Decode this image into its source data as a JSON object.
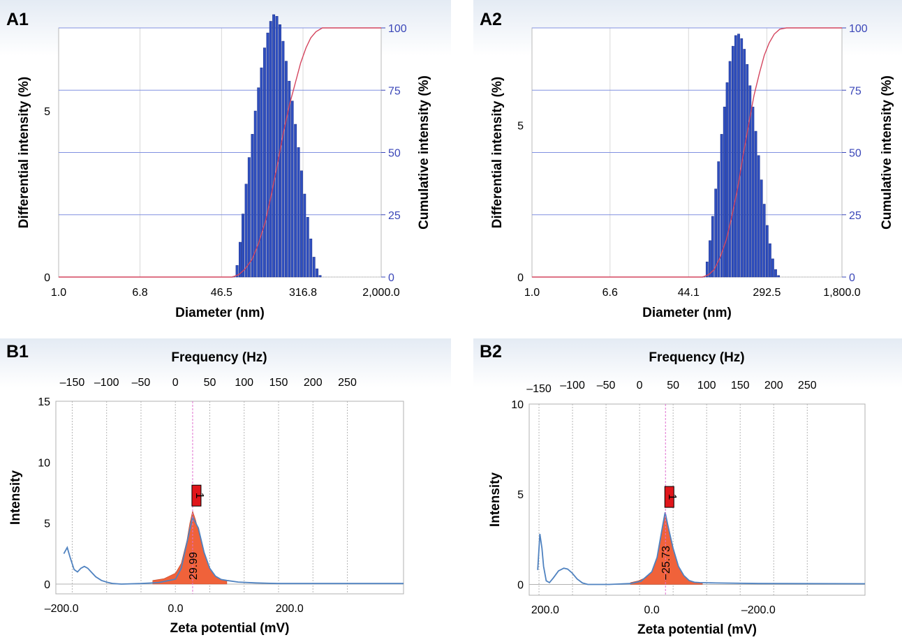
{
  "colors": {
    "bar": "#2f4fbf",
    "bar_edge": "#1a2e88",
    "cumulative_line": "#d4455e",
    "grid_blue": "#8090e0",
    "right_axis": "#3b47b8",
    "peak_fill": "#f0623a",
    "zeta_line": "#4f82c0",
    "marker_red": "#e0161b",
    "marker_line": "#e070d0",
    "panel_top_bg": "#e4ebf4"
  },
  "chart_data": [
    {
      "id": "A1",
      "panel_label": "A1",
      "type": "bar",
      "xlabel": "Diameter (nm)",
      "ylabel": "Differential intensity (%)",
      "y2label": "Cumulative intensity (%)",
      "x_scale": "log",
      "x_ticks": [
        "1.0",
        "6.8",
        "46.5",
        "316.8",
        "2,000.0"
      ],
      "x_tick_values": [
        1.0,
        6.8,
        46.5,
        316.8,
        2000.0
      ],
      "y_ticks": [
        "0",
        "5"
      ],
      "y_tick_values": [
        0,
        5
      ],
      "ylim": [
        0,
        7.5
      ],
      "y2_ticks": [
        "0",
        "25",
        "50",
        "75",
        "100"
      ],
      "y2_tick_values": [
        0,
        25,
        50,
        75,
        100
      ],
      "y2lim": [
        0,
        100
      ],
      "grid": true,
      "bars": {
        "x": [
          62,
          67,
          72,
          77,
          83,
          89,
          96,
          103,
          111,
          119,
          128,
          138,
          148,
          159,
          171,
          184,
          198,
          213,
          229,
          246,
          265,
          285,
          306,
          329,
          354,
          381,
          410,
          441,
          474
        ],
        "y": [
          0.02,
          0.35,
          1.05,
          1.9,
          2.8,
          3.6,
          4.3,
          5.0,
          5.7,
          6.3,
          6.9,
          7.35,
          7.7,
          7.9,
          7.85,
          7.6,
          7.1,
          6.5,
          5.9,
          5.3,
          4.6,
          3.9,
          3.2,
          2.5,
          1.8,
          1.15,
          0.6,
          0.25,
          0.05
        ]
      },
      "cumulative": {
        "x": [
          1,
          60,
          70,
          80,
          95,
          110,
          130,
          150,
          175,
          200,
          230,
          265,
          300,
          340,
          380,
          430,
          500,
          600,
          2000
        ],
        "y": [
          0,
          0,
          1,
          3,
          7,
          13,
          22,
          33,
          46,
          58,
          69,
          78,
          86,
          92,
          96,
          98.5,
          100,
          100,
          100
        ]
      }
    },
    {
      "id": "A2",
      "panel_label": "A2",
      "type": "bar",
      "xlabel": "Diameter (nm)",
      "ylabel": "Differential intensity (%)",
      "y2label": "Cumulative intensity (%)",
      "x_scale": "log",
      "x_ticks": [
        "1.0",
        "6.6",
        "44.1",
        "292.5",
        "1,800.0"
      ],
      "x_tick_values": [
        1.0,
        6.6,
        44.1,
        292.5,
        1800.0
      ],
      "y_ticks": [
        "0",
        "5"
      ],
      "y_tick_values": [
        0,
        5
      ],
      "ylim": [
        0,
        8.2
      ],
      "y2_ticks": [
        "0",
        "25",
        "50",
        "75",
        "100"
      ],
      "y2_tick_values": [
        0,
        25,
        50,
        75,
        100
      ],
      "y2lim": [
        0,
        100
      ],
      "grid": true,
      "bars": {
        "x": [
          64,
          69,
          74,
          79,
          85,
          91,
          98,
          105,
          112,
          120,
          129,
          138,
          148,
          159,
          170,
          182,
          195,
          209,
          224,
          240,
          257,
          275,
          295,
          316,
          338,
          362,
          388
        ],
        "y": [
          0.02,
          0.5,
          1.2,
          2.0,
          2.9,
          3.8,
          4.7,
          5.6,
          6.4,
          7.1,
          7.6,
          7.95,
          8.0,
          7.85,
          7.5,
          7.0,
          6.3,
          5.6,
          4.8,
          4.0,
          3.2,
          2.4,
          1.7,
          1.1,
          0.6,
          0.25,
          0.05
        ]
      },
      "cumulative": {
        "x": [
          1,
          62,
          72,
          82,
          95,
          110,
          125,
          145,
          165,
          190,
          215,
          245,
          275,
          310,
          350,
          400,
          470,
          1800
        ],
        "y": [
          0,
          0,
          1,
          3,
          8,
          15,
          24,
          36,
          49,
          62,
          73,
          82,
          89,
          94,
          97.5,
          99.5,
          100,
          100
        ]
      }
    },
    {
      "id": "B1",
      "panel_label": "B1",
      "type": "area",
      "xlabel": "Zeta potential (mV)",
      "ylabel": "Intensity",
      "x2label": "Frequency (Hz)",
      "x_ticks": [
        "–200.0",
        "0.0",
        "200.0"
      ],
      "x_tick_values": [
        -200,
        0,
        200
      ],
      "xlim": [
        -210,
        400
      ],
      "x2_ticks": [
        "–150",
        "–100",
        "–50",
        "0",
        "50",
        "100",
        "150",
        "200",
        "250"
      ],
      "x2_tick_values": [
        -150,
        -100,
        -50,
        0,
        50,
        100,
        150,
        200,
        250
      ],
      "x2lim": [
        -173.8,
        331.7
      ],
      "y_ticks": [
        "0",
        "5",
        "10",
        "15"
      ],
      "y_tick_values": [
        0,
        5,
        10,
        15
      ],
      "ylim": [
        -0.8,
        15
      ],
      "grid": true,
      "line": {
        "x": [
          -196,
          -190,
          -185,
          -178,
          -172,
          -166,
          -160,
          -154,
          -148,
          -140,
          -130,
          -120,
          -110,
          -95,
          -60,
          -30,
          0,
          10,
          20,
          30,
          40,
          50,
          60,
          70,
          80,
          90,
          110,
          140,
          180,
          400
        ],
        "y": [
          2.5,
          3.0,
          2.2,
          1.2,
          1.0,
          1.3,
          1.45,
          1.3,
          1.0,
          0.6,
          0.3,
          0.15,
          0.05,
          0.0,
          0.05,
          0.12,
          0.4,
          1.3,
          3.4,
          5.5,
          4.6,
          2.6,
          1.3,
          0.65,
          0.38,
          0.3,
          0.17,
          0.1,
          0.05,
          0.05
        ]
      },
      "peak": {
        "x": [
          -40,
          -20,
          0,
          10,
          20,
          25,
          30,
          35,
          40,
          50,
          60,
          70,
          80,
          90
        ],
        "y": [
          0.3,
          0.45,
          0.9,
          1.7,
          3.6,
          5.0,
          6.0,
          5.3,
          4.4,
          2.5,
          1.3,
          0.65,
          0.38,
          0.25
        ],
        "value_label": "29.99",
        "marker_label": "1",
        "center": 29.99
      }
    },
    {
      "id": "B2",
      "panel_label": "B2",
      "type": "area",
      "xlabel": "Zeta potential (mV)",
      "ylabel": "Intensity",
      "x2label": "Frequency (Hz)",
      "x_ticks": [
        "200.0",
        "0.0",
        "–200.0"
      ],
      "x_tick_values": [
        200,
        0,
        -200
      ],
      "xlim": [
        230,
        -400
      ],
      "x2_ticks": [
        "–150",
        "–100",
        "–50",
        "0",
        "50",
        "100",
        "150",
        "200",
        "250"
      ],
      "x2_tick_values": [
        -150,
        -100,
        -50,
        0,
        50,
        100,
        150,
        200,
        250
      ],
      "x2lim": [
        -164.6,
        336.1
      ],
      "y_ticks": [
        "0",
        "5",
        "10"
      ],
      "y_tick_values": [
        0,
        5,
        10
      ],
      "ylim": [
        -0.6,
        10
      ],
      "grid": true,
      "line": {
        "x": [
          214,
          210,
          206,
          203,
          198,
          192,
          185,
          175,
          165,
          158,
          150,
          140,
          130,
          120,
          80,
          40,
          20,
          0,
          -10,
          -20,
          -25,
          -30,
          -40,
          -50,
          -60,
          -70,
          -80,
          -90,
          -120,
          -200,
          -400
        ],
        "y": [
          0.8,
          2.8,
          2.0,
          1.0,
          0.2,
          0.1,
          0.35,
          0.75,
          0.9,
          0.85,
          0.65,
          0.3,
          0.08,
          0.0,
          0.0,
          0.05,
          0.18,
          0.7,
          1.5,
          3.2,
          4.0,
          3.3,
          2.0,
          1.0,
          0.5,
          0.22,
          0.12,
          0.1,
          0.08,
          0.05,
          0.04
        ]
      },
      "peak": {
        "x": [
          40,
          25,
          10,
          0,
          -10,
          -20,
          -25,
          -30,
          -40,
          -50,
          -60,
          -70,
          -80,
          -95
        ],
        "y": [
          0.1,
          0.2,
          0.4,
          0.7,
          1.5,
          3.2,
          4.0,
          3.3,
          2.0,
          1.0,
          0.5,
          0.22,
          0.12,
          0.1
        ],
        "value_label": "−25.73",
        "marker_label": "1",
        "center": -25.73
      }
    }
  ]
}
